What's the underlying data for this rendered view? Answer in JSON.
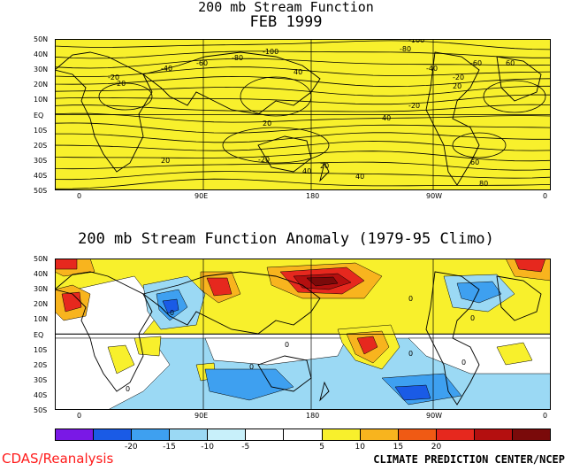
{
  "titles": {
    "top_line1": "200 mb Stream Function",
    "top_line2": "FEB 1999",
    "bottom": "200 mb Stream Function Anomaly (1979-95 Climo)"
  },
  "lat_labels": [
    "50N",
    "40N",
    "30N",
    "20N",
    "10N",
    "EQ",
    "10S",
    "20S",
    "30S",
    "40S",
    "50S"
  ],
  "lon_labels": [
    "0",
    "90E",
    "180",
    "90W",
    "0"
  ],
  "top_contour_labels": [
    "-100",
    "-80",
    "-60",
    "-40",
    "-20",
    "20",
    "40",
    "60",
    "-100",
    "-80",
    "-40",
    "-20",
    "-60",
    "20",
    "-20",
    "40",
    "20",
    "20",
    "-20",
    "40",
    "20",
    "40",
    "60",
    "80"
  ],
  "bottom_contour_labels": [
    "0",
    "0",
    "0",
    "0",
    "0",
    "0",
    "0",
    "0"
  ],
  "colorbar": {
    "labels": [
      "-20",
      "-15",
      "-10",
      "-5",
      "5",
      "10",
      "15",
      "20"
    ],
    "colors": [
      "#7a18e6",
      "#1a5be6",
      "#3ea0f0",
      "#9bd9f4",
      "#c8f0fa",
      "#ffffff",
      "#ffffff",
      "#f8f02c",
      "#f8b41e",
      "#f05a14",
      "#e6281e",
      "#b40f0f",
      "#7a0a0a"
    ]
  },
  "footer": {
    "left": "CDAS/Reanalysis",
    "right": "CLIMATE PREDICTION CENTER/NCEP"
  },
  "colors": {
    "mean_field_fill": "#f8f02c",
    "positive_low": "#f8f02c",
    "positive_mid": "#f8b41e",
    "positive_high": "#e6281e",
    "positive_max": "#7a0a0a",
    "negative_low": "#9bd9f4",
    "negative_mid": "#3ea0f0",
    "negative_high": "#1a5be6"
  }
}
